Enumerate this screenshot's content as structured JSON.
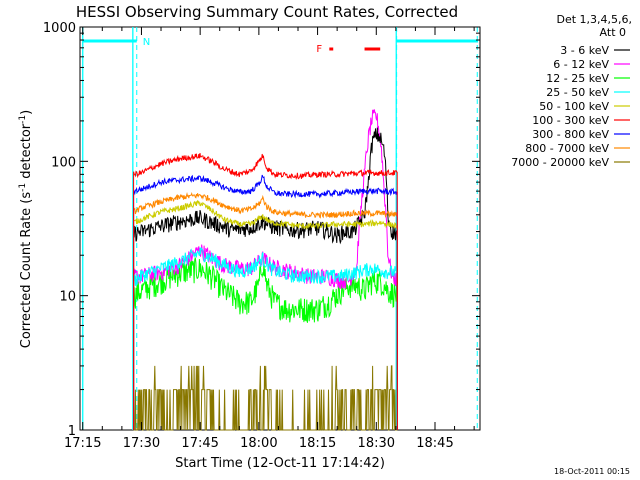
{
  "chart_data": {
    "type": "line",
    "title": "HESSI Observing Summary Count Rates, Corrected",
    "xlabel": "Start Time (12-Oct-11 17:14:42)",
    "ylabel_prefix": "Corrected Count Rate (s",
    "ylabel_sup": "-1",
    "ylabel_mid": " detector",
    "ylabel_sup2": "-1",
    "ylabel_suffix": ")",
    "footer": "18-Oct-2011 00:15",
    "yscale": "log",
    "ylim": [
      1,
      1000
    ],
    "xlim_minutes": [
      -0.7,
      101.5
    ],
    "x_ticks": [
      {
        "label": "17:15",
        "m": 0
      },
      {
        "label": "17:30",
        "m": 15
      },
      {
        "label": "17:45",
        "m": 30
      },
      {
        "label": "18:00",
        "m": 45
      },
      {
        "label": "18:15",
        "m": 60
      },
      {
        "label": "18:30",
        "m": 75
      },
      {
        "label": "18:45",
        "m": 90
      }
    ],
    "y_ticks": [
      {
        "label": "1",
        "v": 1
      },
      {
        "label": "10",
        "v": 10
      },
      {
        "label": "100",
        "v": 100
      },
      {
        "label": "1000",
        "v": 1000
      }
    ],
    "legend": {
      "header1": "Det 1,3,4,5,6,",
      "header2": "Att 0"
    },
    "series": [
      {
        "name": "3 - 6 keV",
        "color": "#000000",
        "x": [
          13,
          15,
          20,
          25,
          30,
          33,
          38,
          43,
          46,
          48,
          52,
          56,
          60,
          63,
          65,
          67,
          69,
          71,
          72,
          73,
          74,
          75,
          76,
          77,
          78,
          79,
          80.4
        ],
        "y": [
          29,
          30,
          33,
          36,
          38,
          35,
          31,
          32,
          36,
          33,
          31,
          31,
          32,
          30,
          28,
          30,
          30,
          36,
          40,
          70,
          140,
          160,
          150,
          120,
          38,
          30,
          29
        ]
      },
      {
        "name": "6 - 12 keV",
        "color": "#ff00ff",
        "x": [
          13,
          15,
          20,
          25,
          30,
          33,
          36,
          40,
          43,
          46,
          48,
          50,
          54,
          58,
          62,
          66,
          68,
          70,
          71,
          72,
          73,
          74,
          75,
          76,
          77,
          78,
          79,
          80.4
        ],
        "y": [
          14,
          14,
          15,
          17,
          22,
          19,
          17,
          16,
          16,
          19,
          17,
          16,
          15,
          14,
          14,
          13,
          13,
          16,
          40,
          80,
          150,
          210,
          220,
          150,
          60,
          20,
          14,
          13
        ]
      },
      {
        "name": "12 - 25 keV",
        "color": "#00ff00",
        "x": [
          13,
          15,
          20,
          25,
          30,
          33,
          36,
          40,
          43,
          45,
          46,
          47,
          49,
          52,
          56,
          60,
          63,
          66,
          68,
          70,
          72,
          74,
          76,
          78,
          80.4
        ],
        "y": [
          10,
          11,
          13,
          15,
          16,
          14,
          11,
          9,
          9,
          12,
          18,
          12,
          9,
          8,
          8,
          8,
          9,
          11,
          12,
          12,
          11,
          13,
          13,
          11,
          10
        ]
      },
      {
        "name": "25 - 50 keV",
        "color": "#00ffff",
        "x": [
          13,
          15,
          20,
          25,
          30,
          33,
          36,
          40,
          43,
          46,
          48,
          50,
          54,
          58,
          62,
          66,
          70,
          74,
          78,
          80.4
        ],
        "y": [
          13,
          14,
          16,
          18,
          21,
          19,
          17,
          15,
          16,
          19,
          16,
          15,
          14,
          14,
          14,
          14,
          15,
          16,
          15,
          15
        ]
      },
      {
        "name": "50 - 100 keV",
        "color": "#cccc00",
        "x": [
          13,
          15,
          20,
          25,
          30,
          33,
          36,
          40,
          43,
          46,
          48,
          52,
          56,
          60,
          64,
          68,
          72,
          76,
          80.4
        ],
        "y": [
          35,
          37,
          42,
          45,
          49,
          43,
          37,
          34,
          34,
          39,
          35,
          34,
          33,
          33,
          34,
          34,
          34,
          35,
          33
        ]
      },
      {
        "name": "100 - 300 keV",
        "color": "#ff0000",
        "x": [
          13,
          15,
          20,
          25,
          30,
          33,
          36,
          40,
          43,
          45,
          46,
          47,
          49,
          52,
          56,
          60,
          64,
          68,
          72,
          76,
          80.4
        ],
        "y": [
          80,
          82,
          96,
          105,
          110,
          100,
          88,
          80,
          85,
          100,
          110,
          90,
          80,
          79,
          78,
          80,
          80,
          81,
          82,
          82,
          82
        ]
      },
      {
        "name": "300 - 800 keV",
        "color": "#0000ff",
        "x": [
          13,
          15,
          20,
          25,
          30,
          33,
          36,
          40,
          43,
          45,
          46,
          47,
          49,
          52,
          56,
          60,
          64,
          68,
          72,
          76,
          80.4
        ],
        "y": [
          60,
          62,
          70,
          73,
          75,
          70,
          64,
          59,
          60,
          68,
          77,
          65,
          58,
          57,
          57,
          57,
          58,
          59,
          60,
          60,
          59
        ]
      },
      {
        "name": "800 - 7000 keV",
        "color": "#ff8800",
        "x": [
          13,
          15,
          20,
          25,
          30,
          33,
          36,
          40,
          43,
          45,
          46,
          47,
          49,
          52,
          56,
          60,
          64,
          68,
          72,
          76,
          80.4
        ],
        "y": [
          42,
          45,
          50,
          54,
          56,
          52,
          47,
          43,
          44,
          48,
          53,
          46,
          42,
          41,
          40,
          40,
          40,
          41,
          41,
          41,
          40
        ]
      },
      {
        "name": "7000 - 20000 keV",
        "color": "#887700",
        "x": [
          13,
          15,
          17,
          20,
          23,
          25,
          27,
          30,
          33,
          36,
          40,
          43,
          45,
          46,
          47,
          49,
          52,
          56,
          60,
          63,
          66,
          68,
          70,
          72,
          75,
          78,
          80.4
        ],
        "y": [
          1,
          1.5,
          1.6,
          2,
          1.7,
          2.2,
          2.5,
          2.6,
          1.3,
          1.1,
          1.1,
          1.3,
          1.8,
          2.6,
          1.4,
          1.2,
          1,
          1,
          1,
          1.2,
          1.6,
          1.9,
          2,
          1.5,
          1.7,
          2,
          1
        ]
      }
    ],
    "markers": {
      "night_label": "N",
      "flare_label": "F",
      "cyan_color": "#00ffff",
      "flare_color": "#ff0000",
      "night_bars": [
        [
          0,
          13.8
        ],
        [
          80.1,
          101
        ]
      ],
      "flare_bars": [
        [
          72,
          76
        ]
      ],
      "flare_dash": [
        [
          63,
          64
        ]
      ],
      "solid_lines": [
        0,
        12.8,
        80.1
      ],
      "dashed_lines": [
        13.8,
        80.2,
        100.8
      ]
    }
  }
}
